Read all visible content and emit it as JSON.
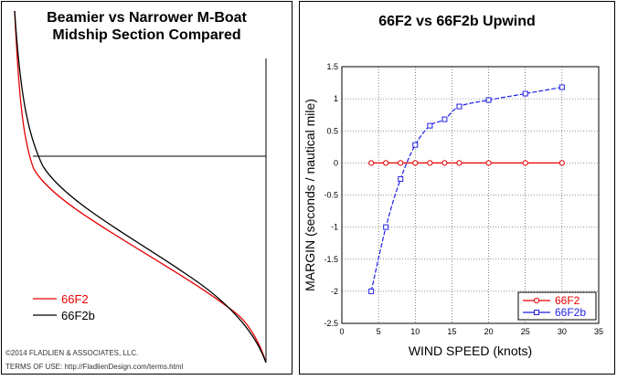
{
  "chart_data": [
    {
      "type": "line",
      "title_lines": [
        "Beamier vs Narrower M-Boat",
        "Midship Section Compared"
      ],
      "series": [
        {
          "name": "66F2",
          "color": "#e60000"
        },
        {
          "name": "66F2b",
          "color": "#000000"
        }
      ],
      "legend_position": "bottom-left",
      "footer": {
        "copyright": "©2014 FLADLIEN & ASSOCIATES, LLC.",
        "terms": "TERMS OF USE: http://FladlienDesign.com/terms.html"
      }
    },
    {
      "type": "line",
      "title": "66F2 vs 66F2b Upwind",
      "xlabel": "WIND SPEED (knots)",
      "ylabel": "MARGIN (seconds / nautical mile)",
      "xlim": [
        0,
        35
      ],
      "ylim": [
        -2.5,
        1.5
      ],
      "xticks": [
        "0",
        "5",
        "10",
        "15",
        "20",
        "25",
        "30",
        "35"
      ],
      "yticks": [
        "-2.5",
        "-2",
        "-1.5",
        "-1",
        "-0.5",
        "0",
        "0.5",
        "1",
        "1.5"
      ],
      "grid": true,
      "legend_position": "bottom-right",
      "series": [
        {
          "name": "66F2",
          "color": "#e60000",
          "marker": "circle",
          "x": [
            4,
            6,
            8,
            10,
            12,
            14,
            16,
            20,
            25,
            30
          ],
          "y": [
            0,
            0,
            0,
            0,
            0,
            0,
            0,
            0,
            0,
            0
          ]
        },
        {
          "name": "66F2b",
          "color": "#1f1fe6",
          "marker": "square",
          "x": [
            4,
            6,
            8,
            10,
            12,
            14,
            16,
            20,
            25,
            30
          ],
          "y": [
            -2.0,
            -1.0,
            -0.25,
            0.28,
            0.58,
            0.68,
            0.88,
            0.98,
            1.08,
            1.18
          ]
        }
      ]
    }
  ]
}
